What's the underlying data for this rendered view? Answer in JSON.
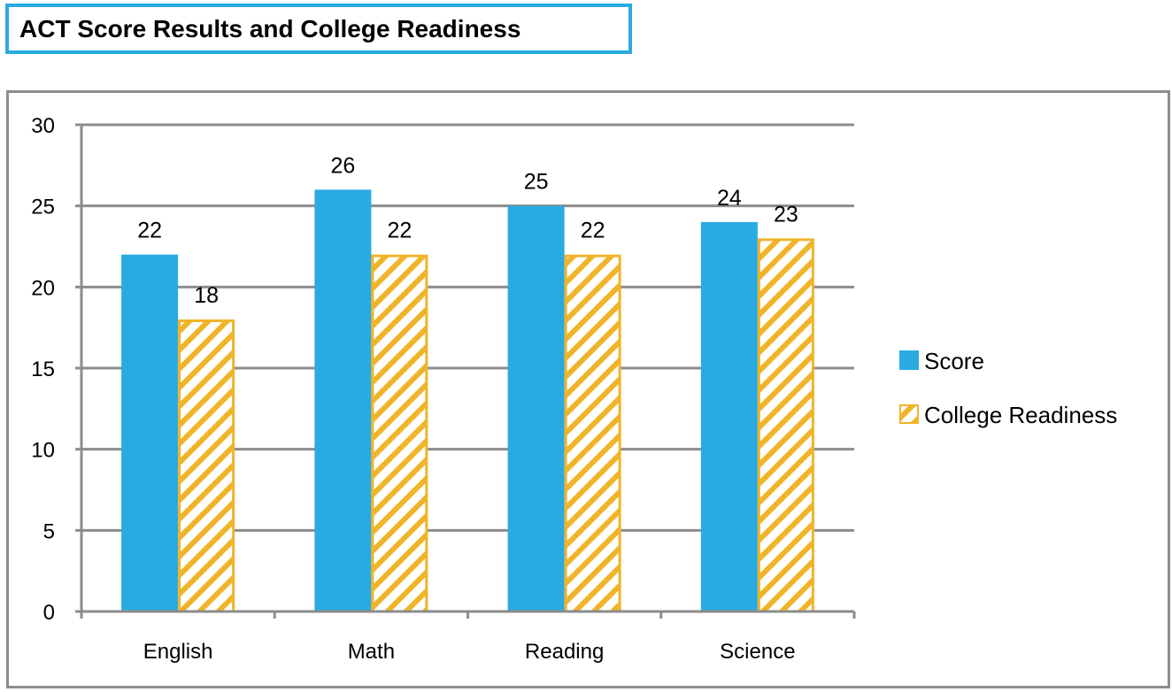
{
  "chart_data": {
    "type": "bar",
    "title": "ACT Score Results and College Readiness",
    "categories": [
      "English",
      "Math",
      "Reading",
      "Science"
    ],
    "series": [
      {
        "name": "Score",
        "values": [
          22,
          26,
          25,
          24
        ],
        "color": "#29abe2",
        "pattern": "solid"
      },
      {
        "name": "College Readiness",
        "values": [
          18,
          22,
          22,
          23
        ],
        "color": "#f0b429",
        "pattern": "diagonal-hatch"
      }
    ],
    "ylim": [
      0,
      30
    ],
    "yticks": [
      0,
      5,
      10,
      15,
      20,
      25,
      30
    ],
    "grid": true,
    "legend": "right",
    "data_labels": true
  }
}
